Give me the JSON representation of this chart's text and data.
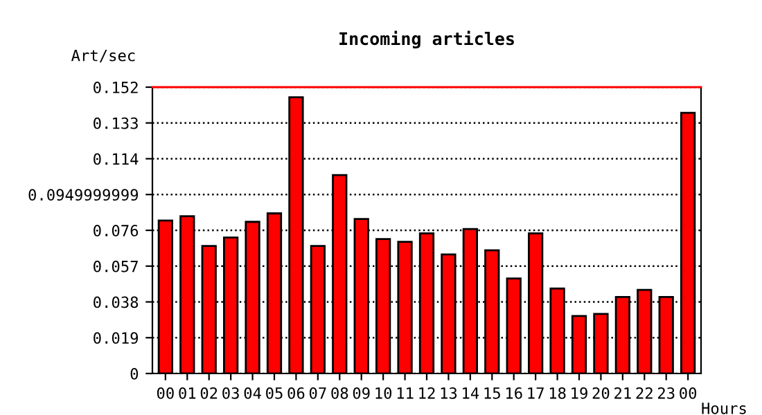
{
  "chart_data": {
    "type": "bar",
    "title": "Incoming articles",
    "xlabel": "Hours",
    "ylabel": "Art/sec",
    "categories": [
      "00",
      "01",
      "02",
      "03",
      "04",
      "05",
      "06",
      "07",
      "08",
      "09",
      "10",
      "11",
      "12",
      "13",
      "14",
      "15",
      "16",
      "17",
      "18",
      "19",
      "20",
      "21",
      "22",
      "23",
      "00"
    ],
    "values": [
      0.0812,
      0.0835,
      0.0677,
      0.0722,
      0.0805,
      0.085,
      0.1466,
      0.0677,
      0.1053,
      0.082,
      0.0714,
      0.0699,
      0.0744,
      0.0632,
      0.0767,
      0.0654,
      0.0504,
      0.0744,
      0.0451,
      0.0305,
      0.0316,
      0.0406,
      0.0444,
      0.0406,
      0.1384
    ],
    "color": "#ff0000",
    "ylim": [
      0,
      0.152
    ],
    "yticks": [
      0,
      0.019,
      0.038,
      0.057,
      0.076,
      0.0949999999,
      0.114,
      0.133,
      0.152
    ],
    "grid": "y",
    "line_style": "dotted",
    "ref_lines": [
      {
        "axis": "y",
        "value": 0.152,
        "color": "#ff0000",
        "line_style": "solid"
      }
    ]
  }
}
